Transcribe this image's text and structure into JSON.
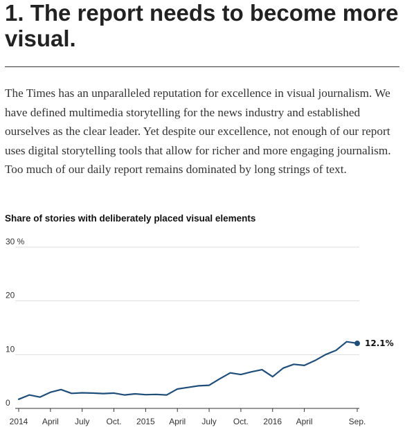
{
  "article": {
    "heading": "1. The report needs to become more visual.",
    "paragraph": "The Times has an unparalleled reputation for excellence in visual journalism. We have defined multimedia storytelling for the news industry and established ourselves as the clear leader. Yet despite our excellence, not enough of our report uses digital storytelling tools that allow for richer and more engaging journalism. Too much of our daily report remains dominated by long strings of text."
  },
  "colors": {
    "line": "#1f4e79",
    "grid": "#dddddd",
    "axis": "#333333"
  },
  "chart_data": {
    "type": "line",
    "title": "Share of stories with deliberately placed visual elements",
    "xlabel": "",
    "ylabel": "",
    "ylim": [
      0,
      30
    ],
    "xlim": [
      0,
      32
    ],
    "y_ticks": [
      {
        "value": 30,
        "label": "30 %"
      },
      {
        "value": 20,
        "label": "20"
      },
      {
        "value": 10,
        "label": "10"
      },
      {
        "value": 0,
        "label": "0"
      }
    ],
    "x_ticks": [
      {
        "value": 0,
        "label": "2014"
      },
      {
        "value": 3,
        "label": "April"
      },
      {
        "value": 6,
        "label": "July"
      },
      {
        "value": 9,
        "label": "Oct."
      },
      {
        "value": 12,
        "label": "2015"
      },
      {
        "value": 15,
        "label": "April"
      },
      {
        "value": 18,
        "label": "July"
      },
      {
        "value": 21,
        "label": "Oct."
      },
      {
        "value": 24,
        "label": "2016"
      },
      {
        "value": 27,
        "label": "April"
      },
      {
        "value": 32,
        "label": "Sep."
      }
    ],
    "grid": true,
    "series": [
      {
        "name": "",
        "x": [
          0,
          1,
          2,
          3,
          4,
          5,
          6,
          7,
          8,
          9,
          10,
          11,
          12,
          13,
          14,
          15,
          16,
          17,
          18,
          19,
          20,
          21,
          22,
          23,
          24,
          25,
          26,
          27,
          28,
          29,
          30,
          31,
          32
        ],
        "y": [
          1.7,
          2.5,
          2.1,
          3.0,
          3.5,
          2.8,
          2.9,
          2.85,
          2.75,
          2.85,
          2.5,
          2.7,
          2.55,
          2.6,
          2.5,
          3.6,
          3.9,
          4.2,
          4.3,
          5.5,
          6.6,
          6.3,
          6.8,
          7.2,
          5.9,
          7.5,
          8.2,
          8.0,
          8.9,
          10.0,
          10.8,
          12.4,
          12.1
        ]
      }
    ],
    "end_label": "12.1%"
  }
}
